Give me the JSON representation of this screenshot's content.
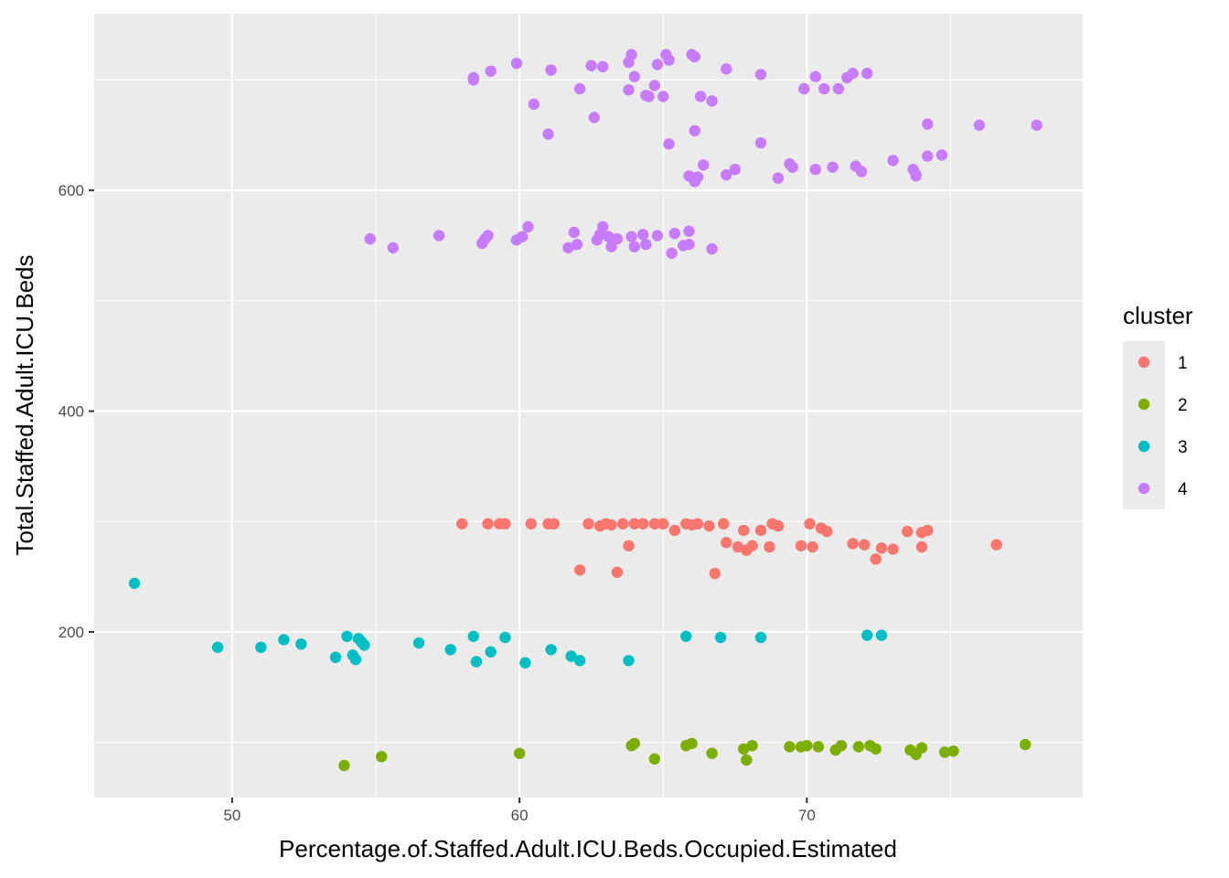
{
  "chart_data": {
    "type": "scatter",
    "title": "",
    "xlabel": "Percentage.of.Staffed.Adult.ICU.Beds.Occupied.Estimated",
    "ylabel": "Total.Staffed.Adult.ICU.Beds",
    "xlim": [
      45.2,
      79.6
    ],
    "ylim": [
      50,
      760
    ],
    "x_ticks": [
      50,
      60,
      70
    ],
    "x_tick_labels": [
      "50",
      "60",
      "70"
    ],
    "y_ticks": [
      200,
      400,
      600
    ],
    "y_tick_labels": [
      "200",
      "400",
      "600"
    ],
    "grid": true,
    "legend": {
      "title": "cluster",
      "position": "right",
      "entries": [
        "1",
        "2",
        "3",
        "4"
      ]
    },
    "series": [
      {
        "name": "1",
        "color": "#F8766D",
        "points": [
          [
            58.0,
            298
          ],
          [
            58.9,
            298
          ],
          [
            59.3,
            298
          ],
          [
            59.5,
            298
          ],
          [
            60.4,
            298
          ],
          [
            61.0,
            298
          ],
          [
            61.2,
            298
          ],
          [
            62.4,
            298
          ],
          [
            62.8,
            296
          ],
          [
            63.0,
            298
          ],
          [
            63.2,
            297
          ],
          [
            63.6,
            298
          ],
          [
            64.0,
            298
          ],
          [
            64.3,
            298
          ],
          [
            64.7,
            298
          ],
          [
            65.0,
            298
          ],
          [
            65.8,
            298
          ],
          [
            66.0,
            297
          ],
          [
            66.2,
            298
          ],
          [
            66.6,
            296
          ],
          [
            67.1,
            298
          ],
          [
            67.8,
            292
          ],
          [
            68.4,
            292
          ],
          [
            68.8,
            298
          ],
          [
            69.0,
            296
          ],
          [
            70.1,
            298
          ],
          [
            70.5,
            294
          ],
          [
            70.7,
            291
          ],
          [
            73.5,
            291
          ],
          [
            74.0,
            290
          ],
          [
            74.2,
            292
          ],
          [
            65.4,
            292
          ],
          [
            63.8,
            278
          ],
          [
            67.2,
            281
          ],
          [
            67.6,
            277
          ],
          [
            67.9,
            274
          ],
          [
            68.1,
            278
          ],
          [
            68.7,
            277
          ],
          [
            69.8,
            278
          ],
          [
            70.2,
            277
          ],
          [
            71.6,
            280
          ],
          [
            72.0,
            279
          ],
          [
            72.6,
            276
          ],
          [
            73.0,
            275
          ],
          [
            74.0,
            277
          ],
          [
            76.6,
            279
          ],
          [
            62.1,
            256
          ],
          [
            63.4,
            254
          ],
          [
            66.8,
            253
          ],
          [
            72.4,
            266
          ]
        ]
      },
      {
        "name": "2",
        "color": "#7CAE00",
        "points": [
          [
            53.9,
            79
          ],
          [
            55.2,
            87
          ],
          [
            60.0,
            90
          ],
          [
            63.9,
            97
          ],
          [
            64.0,
            99
          ],
          [
            64.7,
            85
          ],
          [
            65.8,
            97
          ],
          [
            66.0,
            99
          ],
          [
            66.7,
            90
          ],
          [
            67.8,
            94
          ],
          [
            67.9,
            84
          ],
          [
            68.1,
            97
          ],
          [
            69.4,
            96
          ],
          [
            69.8,
            96
          ],
          [
            70.0,
            97
          ],
          [
            70.4,
            96
          ],
          [
            71.0,
            93
          ],
          [
            71.2,
            97
          ],
          [
            71.8,
            96
          ],
          [
            72.2,
            97
          ],
          [
            72.4,
            94
          ],
          [
            73.6,
            93
          ],
          [
            73.8,
            89
          ],
          [
            74.0,
            95
          ],
          [
            74.8,
            91
          ],
          [
            75.1,
            92
          ],
          [
            77.6,
            98
          ]
        ]
      },
      {
        "name": "3",
        "color": "#00BFC4",
        "points": [
          [
            46.6,
            244
          ],
          [
            49.5,
            186
          ],
          [
            51.0,
            186
          ],
          [
            51.8,
            193
          ],
          [
            52.4,
            189
          ],
          [
            53.6,
            177
          ],
          [
            54.0,
            196
          ],
          [
            54.2,
            179
          ],
          [
            54.3,
            175
          ],
          [
            54.4,
            194
          ],
          [
            54.5,
            191
          ],
          [
            54.6,
            188
          ],
          [
            56.5,
            190
          ],
          [
            57.6,
            184
          ],
          [
            58.4,
            196
          ],
          [
            58.5,
            173
          ],
          [
            59.0,
            182
          ],
          [
            59.5,
            195
          ],
          [
            60.2,
            172
          ],
          [
            61.1,
            184
          ],
          [
            61.8,
            178
          ],
          [
            62.1,
            174
          ],
          [
            63.8,
            174
          ],
          [
            65.8,
            196
          ],
          [
            67.0,
            195
          ],
          [
            68.4,
            195
          ],
          [
            72.1,
            197
          ],
          [
            72.6,
            197
          ]
        ]
      },
      {
        "name": "4",
        "color": "#C77CFF",
        "points": [
          [
            58.4,
            702
          ],
          [
            58.4,
            700
          ],
          [
            59.0,
            708
          ],
          [
            59.9,
            715
          ],
          [
            61.1,
            709
          ],
          [
            62.5,
            713
          ],
          [
            62.9,
            712
          ],
          [
            63.8,
            716
          ],
          [
            63.9,
            723
          ],
          [
            64.0,
            703
          ],
          [
            64.4,
            686
          ],
          [
            64.5,
            685
          ],
          [
            64.7,
            695
          ],
          [
            64.8,
            714
          ],
          [
            65.1,
            723
          ],
          [
            65.2,
            718
          ],
          [
            66.0,
            723
          ],
          [
            66.1,
            721
          ],
          [
            67.2,
            710
          ],
          [
            68.4,
            705
          ],
          [
            60.5,
            678
          ],
          [
            61.0,
            651
          ],
          [
            62.1,
            692
          ],
          [
            62.6,
            666
          ],
          [
            63.8,
            691
          ],
          [
            65.0,
            685
          ],
          [
            66.3,
            685
          ],
          [
            66.7,
            681
          ],
          [
            69.9,
            692
          ],
          [
            70.3,
            703
          ],
          [
            70.6,
            692
          ],
          [
            71.1,
            692
          ],
          [
            71.4,
            702
          ],
          [
            71.6,
            706
          ],
          [
            72.1,
            706
          ],
          [
            74.2,
            660
          ],
          [
            76.0,
            659
          ],
          [
            78.0,
            659
          ],
          [
            65.2,
            642
          ],
          [
            66.1,
            654
          ],
          [
            68.4,
            643
          ],
          [
            66.4,
            623
          ],
          [
            65.9,
            613
          ],
          [
            66.2,
            612
          ],
          [
            66.1,
            608
          ],
          [
            67.2,
            614
          ],
          [
            67.5,
            619
          ],
          [
            69.0,
            611
          ],
          [
            69.4,
            624
          ],
          [
            69.5,
            621
          ],
          [
            70.3,
            619
          ],
          [
            70.9,
            621
          ],
          [
            71.7,
            622
          ],
          [
            71.9,
            617
          ],
          [
            73.0,
            627
          ],
          [
            73.7,
            619
          ],
          [
            73.8,
            613
          ],
          [
            73.8,
            614
          ],
          [
            74.2,
            631
          ],
          [
            74.7,
            632
          ],
          [
            54.8,
            556
          ],
          [
            55.6,
            548
          ],
          [
            57.2,
            559
          ],
          [
            58.7,
            552
          ],
          [
            58.8,
            556
          ],
          [
            58.9,
            559
          ],
          [
            59.9,
            555
          ],
          [
            60.1,
            558
          ],
          [
            60.3,
            567
          ],
          [
            61.7,
            548
          ],
          [
            61.9,
            562
          ],
          [
            62.0,
            551
          ],
          [
            62.7,
            555
          ],
          [
            62.8,
            560
          ],
          [
            62.9,
            567
          ],
          [
            63.1,
            558
          ],
          [
            63.2,
            549
          ],
          [
            63.4,
            556
          ],
          [
            63.9,
            558
          ],
          [
            64.0,
            549
          ],
          [
            64.3,
            560
          ],
          [
            64.4,
            551
          ],
          [
            64.8,
            559
          ],
          [
            65.3,
            543
          ],
          [
            65.4,
            561
          ],
          [
            65.7,
            550
          ],
          [
            65.9,
            563
          ],
          [
            65.9,
            551
          ],
          [
            66.7,
            547
          ]
        ]
      }
    ]
  }
}
